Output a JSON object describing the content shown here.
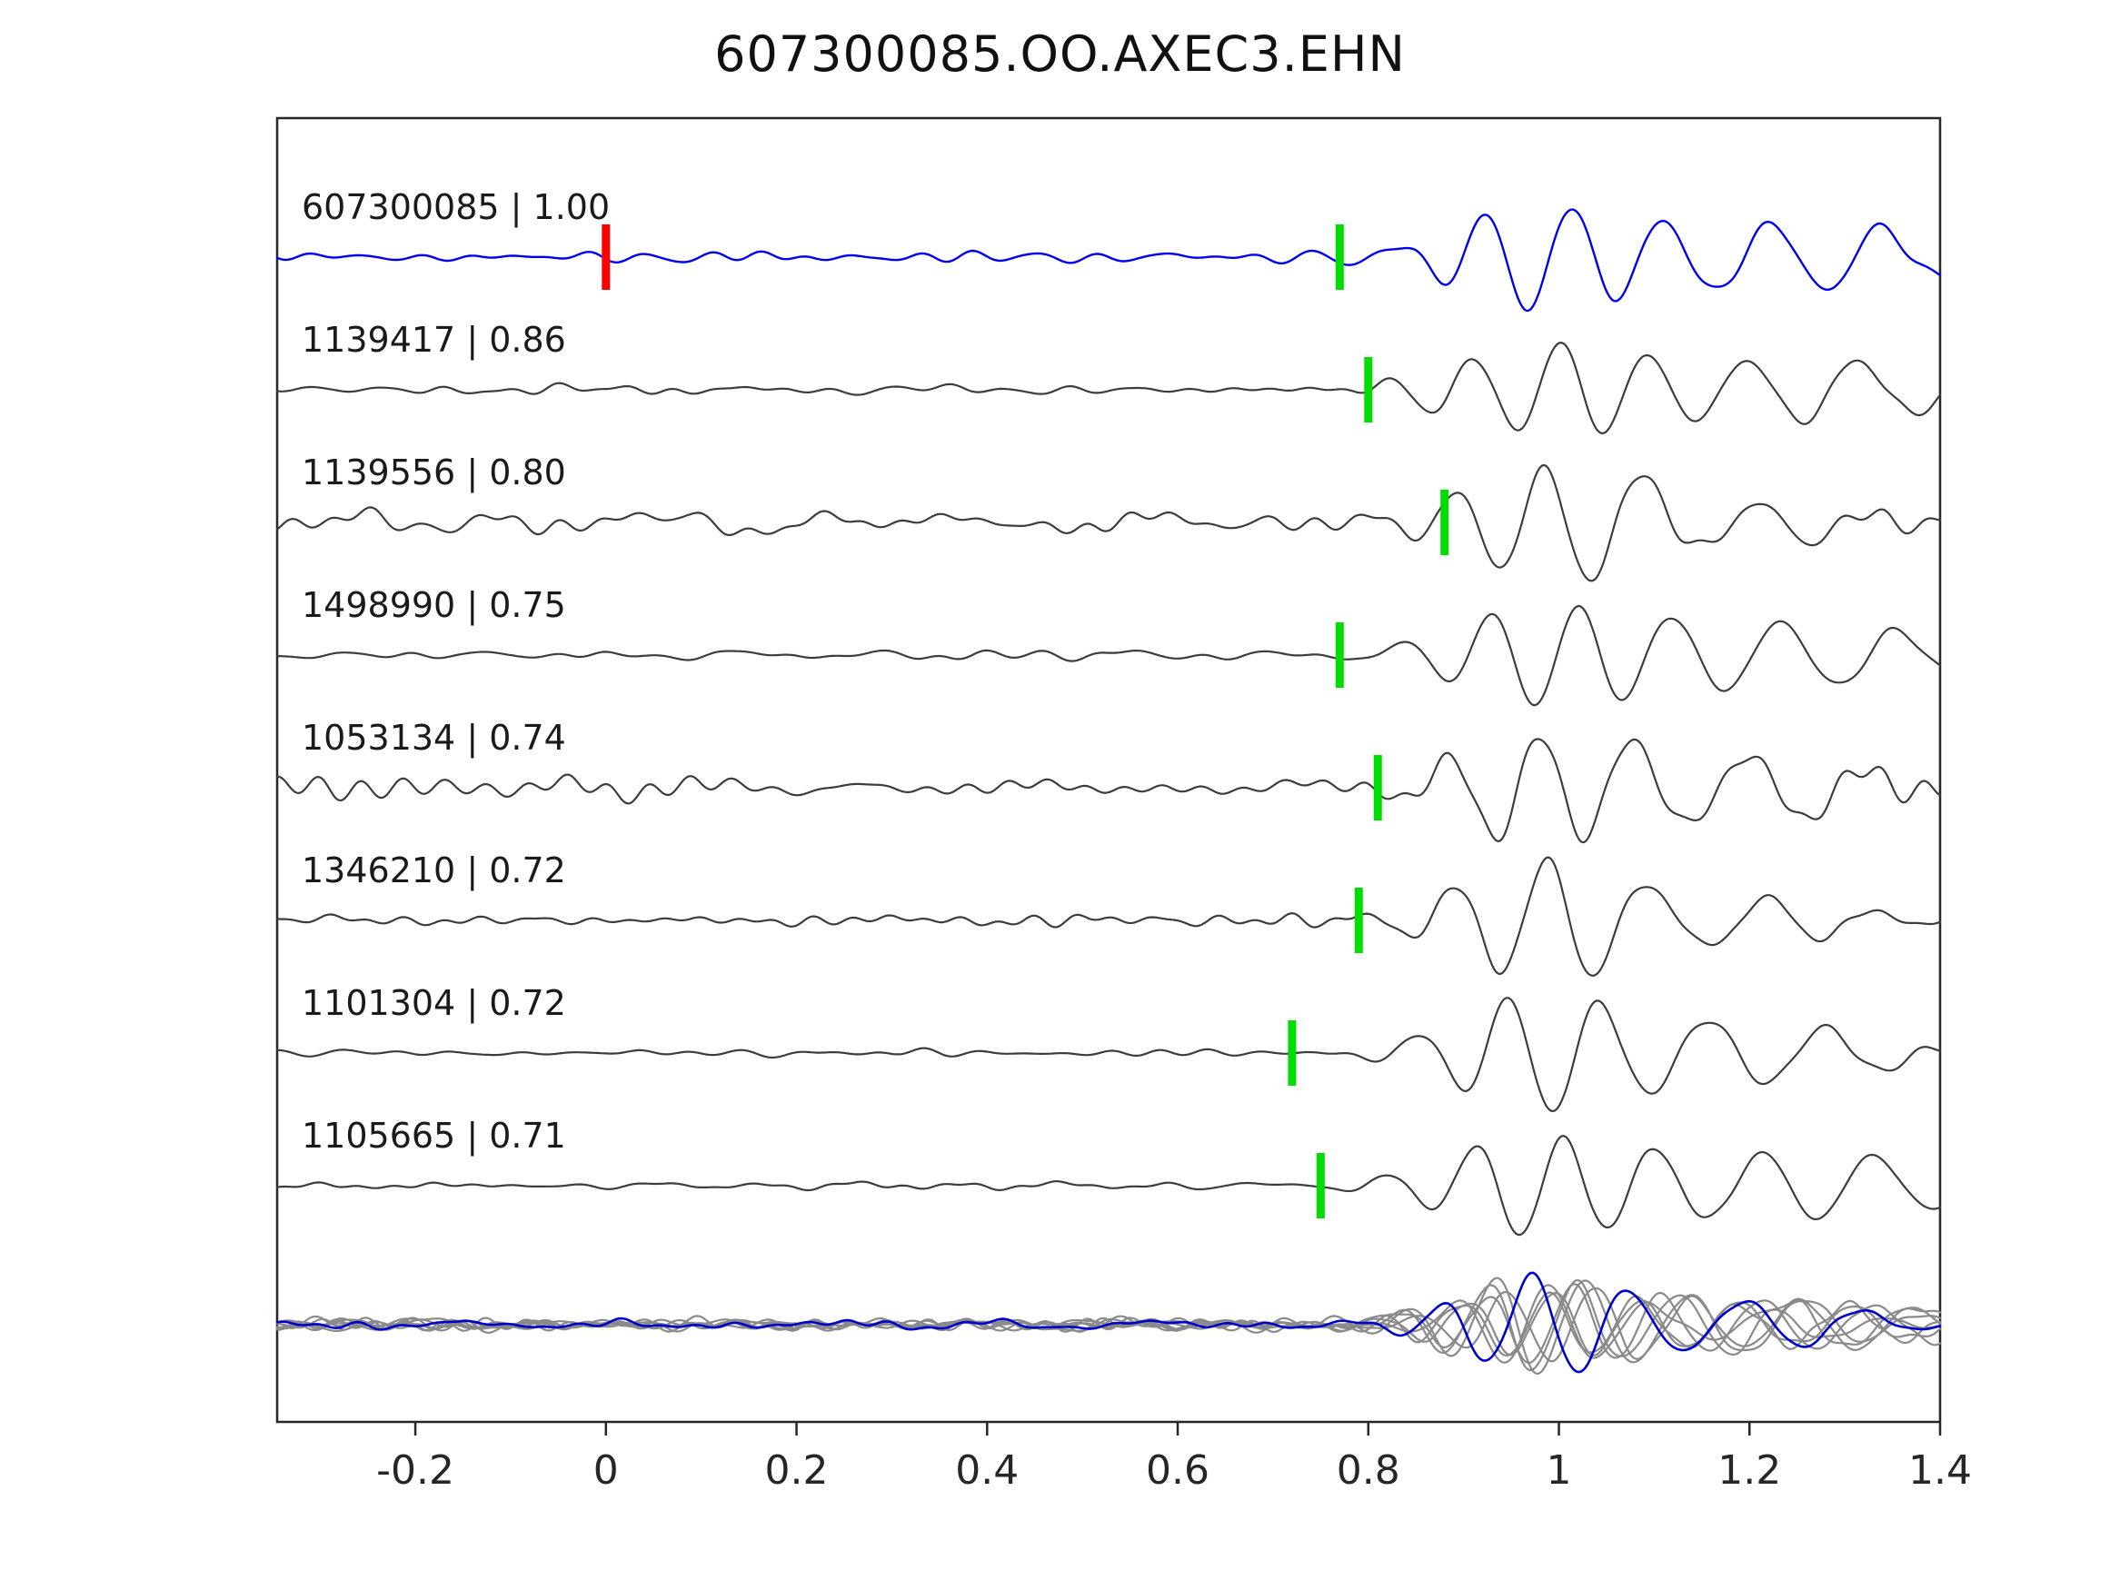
{
  "title": "607300085.OO.AXEC3.EHN",
  "chart_data": {
    "type": "line",
    "title": "607300085.OO.AXEC3.EHN",
    "xlabel": "",
    "ylabel": "",
    "xlim": [
      -0.345,
      1.4
    ],
    "grid": false,
    "legend_position": "none",
    "x_ticks": [
      -0.2,
      0,
      0.2,
      0.4,
      0.6,
      0.8,
      1,
      1.2,
      1.4
    ],
    "x_tick_labels": [
      "-0.2",
      "0",
      "0.2",
      "0.4",
      "0.6",
      "0.8",
      "1",
      "1.2",
      "1.4"
    ],
    "colors": {
      "reference_trace": "#0000ee",
      "match_trace": "#3c3c3c",
      "overlay_gray": "#8a8a8a",
      "overlay_blue": "#0000cc",
      "pick_green": "#00dd00",
      "pick_red": "#ff0000",
      "axes": "#262626"
    },
    "traces": [
      {
        "event_id": "607300085",
        "correlation": "1.00",
        "label": "607300085 | 1.00",
        "color": "#0000ee",
        "pick_time": 0.77,
        "ref_pick_time": 0.0,
        "noise_amp": 7,
        "main_amp": 58,
        "arrival": 0.97
      },
      {
        "event_id": "1139417",
        "correlation": "0.86",
        "label": "1139417 | 0.86",
        "color": "#3c3c3c",
        "pick_time": 0.8,
        "ref_pick_time": null,
        "noise_amp": 6,
        "main_amp": 55,
        "arrival": 0.97
      },
      {
        "event_id": "1139556",
        "correlation": "0.80",
        "label": "1139556 | 0.80",
        "color": "#3c3c3c",
        "pick_time": 0.88,
        "ref_pick_time": null,
        "noise_amp": 16,
        "main_amp": 56,
        "arrival": 0.98
      },
      {
        "event_id": "1498990",
        "correlation": "0.75",
        "label": "1498990 | 0.75",
        "color": "#3c3c3c",
        "pick_time": 0.77,
        "ref_pick_time": null,
        "noise_amp": 6,
        "main_amp": 56,
        "arrival": 0.97
      },
      {
        "event_id": "1053134",
        "correlation": "0.74",
        "label": "1053134 | 0.74",
        "color": "#3c3c3c",
        "pick_time": 0.81,
        "ref_pick_time": null,
        "noise_amp": 14,
        "main_amp": 55,
        "arrival": 0.98
      },
      {
        "event_id": "1346210",
        "correlation": "0.72",
        "label": "1346210 | 0.72",
        "color": "#3c3c3c",
        "pick_time": 0.79,
        "ref_pick_time": null,
        "noise_amp": 7,
        "main_amp": 55,
        "arrival": 0.97
      },
      {
        "event_id": "1101304",
        "correlation": "0.72",
        "label": "1101304 | 0.72",
        "color": "#3c3c3c",
        "pick_time": 0.72,
        "ref_pick_time": null,
        "noise_amp": 5,
        "main_amp": 56,
        "arrival": 0.96
      },
      {
        "event_id": "1105665",
        "correlation": "0.71",
        "label": "1105665 | 0.71",
        "color": "#3c3c3c",
        "pick_time": 0.75,
        "ref_pick_time": null,
        "noise_amp": 5,
        "main_amp": 56,
        "arrival": 0.96
      }
    ],
    "overlay": {
      "gray_trace_count": 7,
      "gray_color": "#8a8a8a",
      "blue_color": "#0000cc",
      "noise_amp": 8,
      "main_amp": 44,
      "arrival": 0.97
    }
  }
}
